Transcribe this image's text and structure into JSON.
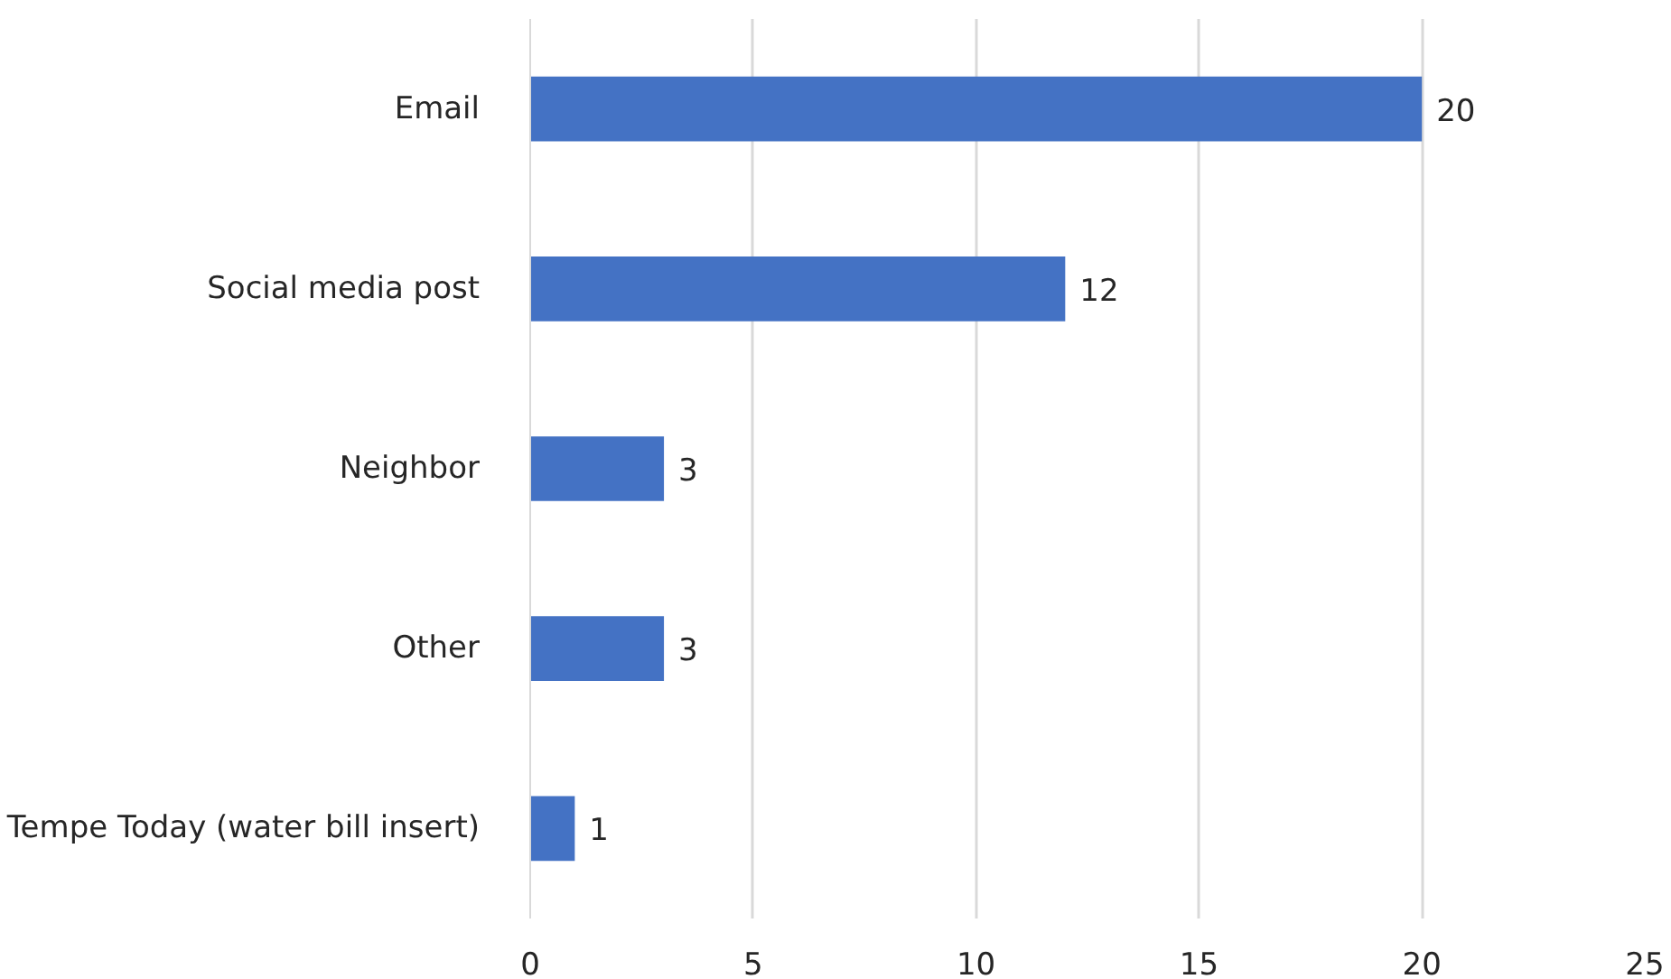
{
  "chart_data": {
    "type": "bar",
    "orientation": "horizontal",
    "categories": [
      "Email",
      "Social media post",
      "Neighbor",
      "Other",
      "Tempe Today (water bill insert)"
    ],
    "values": [
      20,
      12,
      3,
      3,
      1
    ],
    "color": "#4472c4",
    "xlim": [
      0,
      25
    ],
    "xticks": [
      0,
      5,
      10,
      15,
      20,
      25
    ],
    "grid": "x",
    "data_labels": true
  }
}
